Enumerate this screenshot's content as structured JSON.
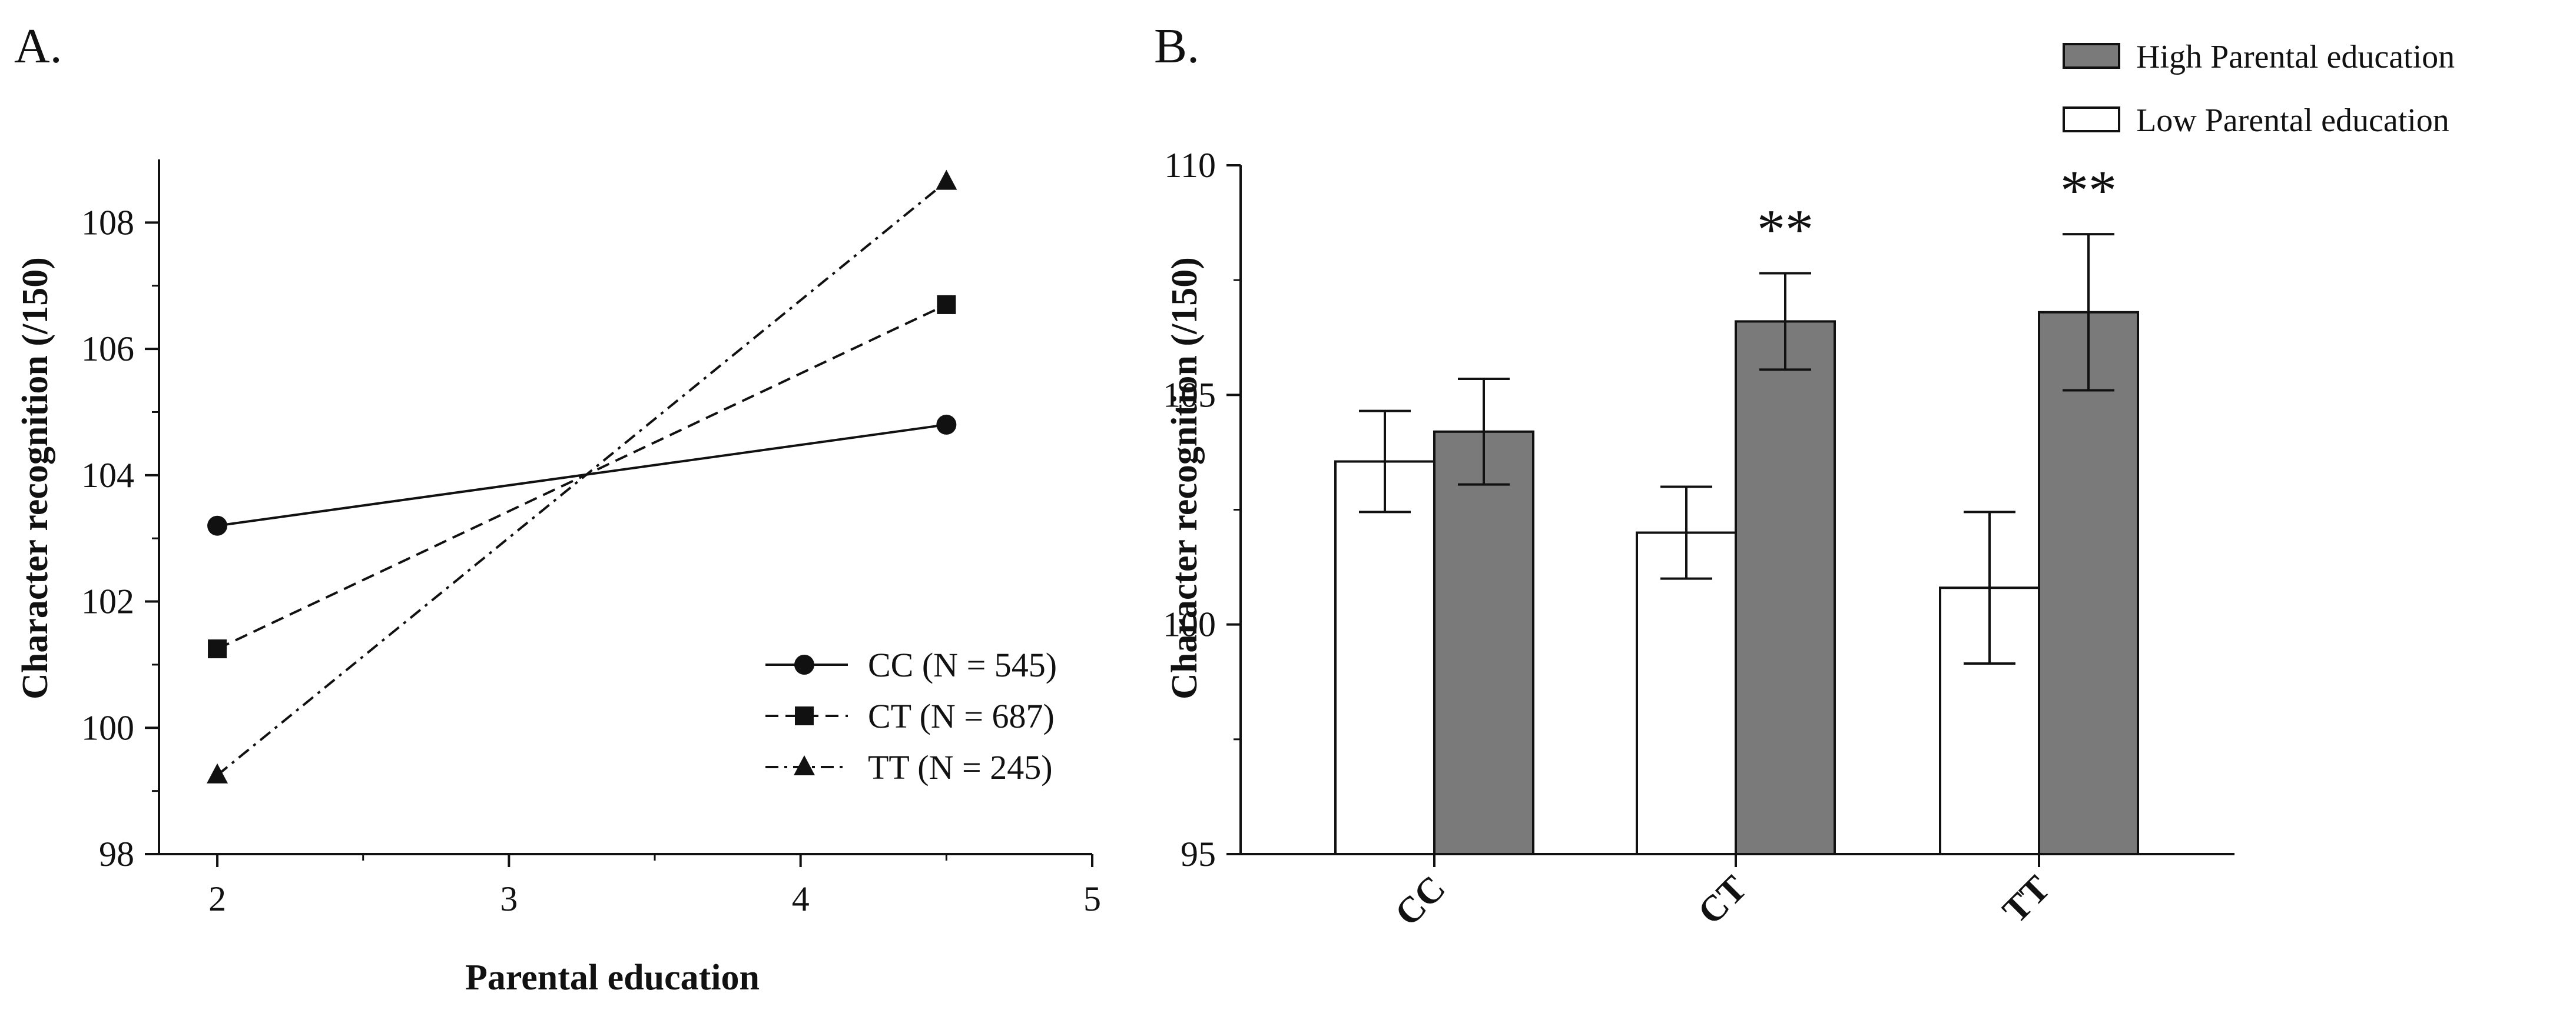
{
  "chart_data": [
    {
      "panel_label": "A.",
      "type": "line",
      "xlabel": "Parental education",
      "ylabel": "Character recognition (/150)",
      "xlim": [
        1.8,
        5
      ],
      "ylim": [
        98,
        109
      ],
      "x_ticks": [
        2,
        3,
        4,
        5
      ],
      "y_ticks": [
        98,
        100,
        102,
        104,
        106,
        108
      ],
      "legend_position": "bottom-right",
      "series": [
        {
          "name": "CC (N = 545)",
          "marker": "circle",
          "dash": "solid",
          "x": [
            2,
            4.5
          ],
          "y": [
            103.2,
            104.8
          ]
        },
        {
          "name": "CT (N = 687)",
          "marker": "square",
          "dash": "dashed",
          "x": [
            2,
            4.5
          ],
          "y": [
            101.25,
            106.7
          ]
        },
        {
          "name": "TT (N = 245)",
          "marker": "triangle",
          "dash": "dash-dot",
          "x": [
            2,
            4.5
          ],
          "y": [
            99.25,
            108.65
          ]
        }
      ]
    },
    {
      "panel_label": "B.",
      "type": "bar",
      "xlabel": "",
      "ylabel": "Character recognition (/150)",
      "ylim": [
        95,
        110
      ],
      "y_ticks": [
        95,
        100,
        105,
        110
      ],
      "categories": [
        "CC",
        "CT",
        "TT"
      ],
      "legend_position": "top-right",
      "series": [
        {
          "name": "Low Parental education",
          "color": "#ffffff",
          "values": [
            103.55,
            102.0,
            100.8
          ],
          "errors": [
            1.1,
            1.0,
            1.65
          ]
        },
        {
          "name": "High Parental education",
          "color": "#7a7a7a",
          "values": [
            104.2,
            106.6,
            106.8
          ],
          "errors": [
            1.15,
            1.05,
            1.7
          ]
        }
      ],
      "annotations": [
        {
          "category": "CT",
          "text": "**"
        },
        {
          "category": "TT",
          "text": "**"
        }
      ]
    }
  ]
}
